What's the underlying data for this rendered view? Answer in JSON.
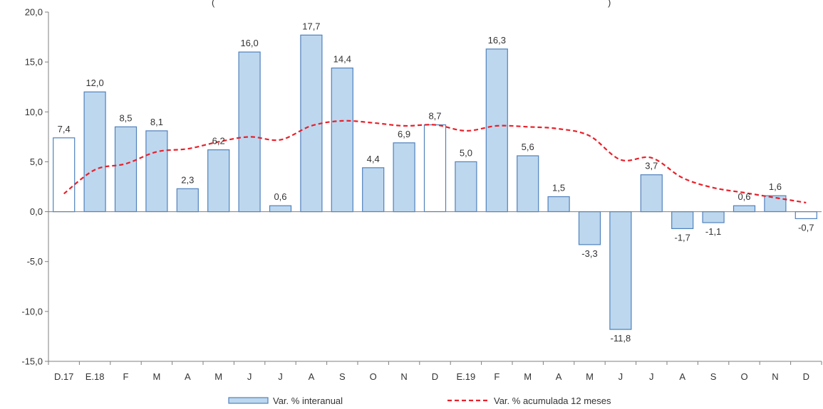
{
  "chart_data": {
    "type": "bar",
    "categories": [
      "D.17",
      "E.18",
      "F",
      "M",
      "A",
      "M",
      "J",
      "J",
      "A",
      "S",
      "O",
      "N",
      "D",
      "E.19",
      "F",
      "M",
      "A",
      "M",
      "J",
      "J",
      "A",
      "S",
      "O",
      "N",
      "D"
    ],
    "series": [
      {
        "name": "Var. % interanual",
        "type": "bar",
        "values": [
          7.4,
          12.0,
          8.5,
          8.1,
          2.3,
          6.2,
          16.0,
          0.6,
          17.7,
          14.4,
          4.4,
          6.9,
          8.7,
          5.0,
          16.3,
          5.6,
          1.5,
          -3.3,
          -11.8,
          3.7,
          -1.7,
          -1.1,
          0.6,
          1.6,
          -0.7
        ],
        "labels": [
          "7,4",
          "12,0",
          "8,5",
          "8,1",
          "2,3",
          "6,2",
          "16,0",
          "0,6",
          "17,7",
          "14,4",
          "4,4",
          "6,9",
          "8,7",
          "5,0",
          "16,3",
          "5,6",
          "1,5",
          "-3,3",
          "-11,8",
          "3,7",
          "-1,7",
          "-1,1",
          "0,6",
          "1,6",
          "-0,7"
        ],
        "hollow_categories": [
          "D.17",
          "D",
          "D"
        ],
        "hollow_indices": [
          0,
          12,
          24
        ]
      },
      {
        "name": "Var. % acumulada 12 meses",
        "type": "line",
        "style": "dashed",
        "values": [
          1.8,
          4.2,
          4.8,
          6.0,
          6.3,
          7.0,
          7.5,
          7.2,
          8.6,
          9.1,
          8.9,
          8.6,
          8.7,
          8.1,
          8.6,
          8.5,
          8.3,
          7.6,
          5.2,
          5.4,
          3.4,
          2.4,
          1.9,
          1.4,
          0.9
        ]
      }
    ],
    "y_ticks": [
      "20,0",
      "15,0",
      "10,0",
      "5,0",
      "0,0",
      "-5,0",
      "-10,0",
      "-15,0"
    ],
    "ylim": [
      -15,
      20
    ],
    "title": "(",
    "title_right": ")",
    "legend_position": "bottom",
    "grid": false,
    "colors": {
      "bar_fill": "#bdd7ee",
      "bar_stroke": "#4f81bd",
      "hollow_fill": "#ffffff",
      "line": "#e8202a",
      "axis": "#7f7f7f"
    }
  }
}
